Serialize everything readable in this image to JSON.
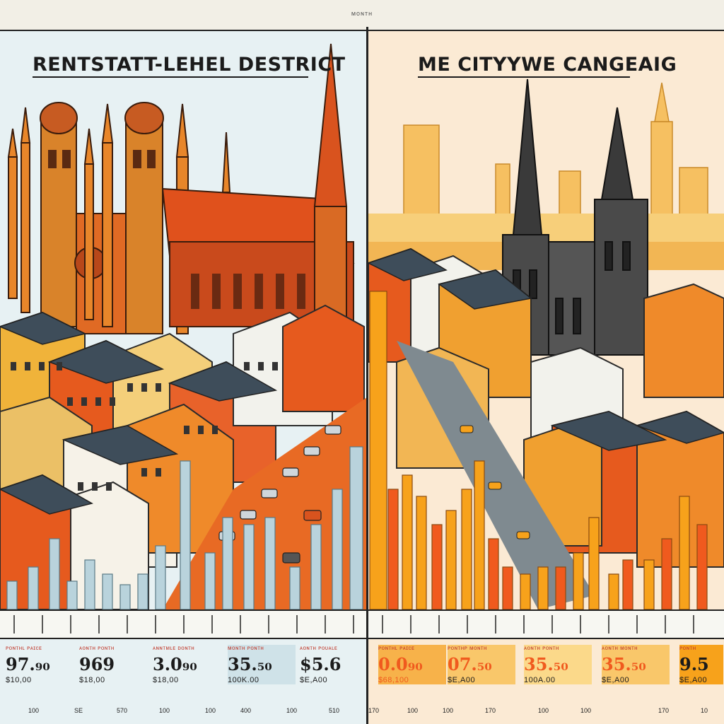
{
  "header": {
    "top_label": "ᴍᴏɴᴛʜ"
  },
  "left_panel": {
    "title": "RENTSTATT-LEHEL DESTRICT",
    "stats": [
      {
        "caption": "ᴘᴏɴᴛʜʟ ᴘᴀɪᴄᴇ",
        "value": "97.₉₀",
        "sub": "$10,00"
      },
      {
        "caption": "ᴀᴏɴᴛʜ ᴘᴏɴᴛʜ",
        "value": "969",
        "sub": "$18,00"
      },
      {
        "caption": "ᴀɴɴᴛᴍʟᴇ ᴅᴏɴᴛʜ",
        "value": "3.0₉₀",
        "sub": "$18,00"
      },
      {
        "caption": "ᴍᴏɴᴛʜ ᴘᴏɴᴛʜ",
        "value": "35.₅₀",
        "sub": "100K.00"
      },
      {
        "caption": "ᴀᴏɴᴛʜ ᴘᴏᴜᴀʟᴇ",
        "value": "$5.6",
        "sub": "$E,A00"
      }
    ],
    "axis_labels": [
      "100",
      "SE",
      "570",
      "100",
      "100",
      "400",
      "100",
      "510"
    ]
  },
  "right_panel": {
    "title": "ME CITYYWE CANGEAIG",
    "stats": [
      {
        "caption": "ᴘᴏɴᴛʜʟ ᴘᴀɪᴄᴇ",
        "value": "0.0₉₀",
        "sub": "$68,100"
      },
      {
        "caption": "ᴘᴏɴᴛʜᴘ ᴍᴏɴᴛʜ",
        "value": "07.₅₀",
        "sub": "$E,A00"
      },
      {
        "caption": "ᴀᴏɴᴛʜ ᴘᴏɴᴛʜ",
        "value": "35.₅₀",
        "sub": "100A.00"
      },
      {
        "caption": "ᴀᴏɴᴛʜ ᴍᴏɴᴛʜ",
        "value": "35.₅₀",
        "sub": "$E,A00"
      },
      {
        "caption": "ᴘᴏɴᴛʜ",
        "value": "9.5",
        "sub": "$E,A00"
      }
    ],
    "axis_labels": [
      "170",
      "100",
      "100",
      "170",
      "100",
      "100",
      "170",
      "10"
    ]
  },
  "colors": {
    "left_bars": "#b9d3dc",
    "right_bars_a": "#f7a21b",
    "right_bars_b": "#f05a1e",
    "brick": "#e2561f",
    "ochre": "#e8a33d"
  }
}
